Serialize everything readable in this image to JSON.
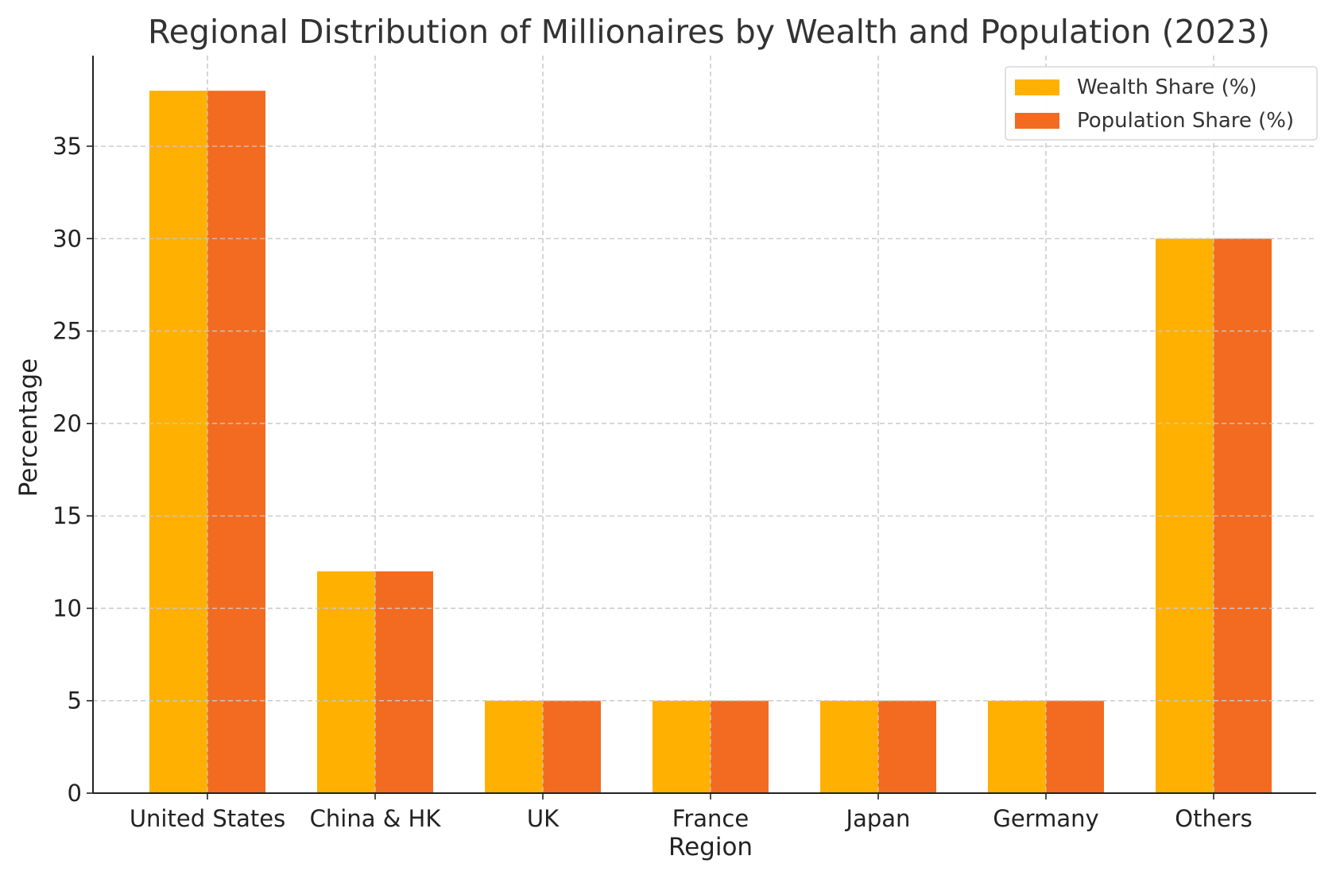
{
  "chart_data": {
    "type": "bar",
    "title": "Regional Distribution of Millionaires by Wealth and Population (2023)",
    "xlabel": "Region",
    "ylabel": "Percentage",
    "categories": [
      "United States",
      "China & HK",
      "UK",
      "France",
      "Japan",
      "Germany",
      "Others"
    ],
    "series": [
      {
        "name": "Wealth Share (%)",
        "values": [
          38,
          12,
          5,
          5,
          5,
          5,
          30
        ],
        "color": "#FFB000"
      },
      {
        "name": "Population Share (%)",
        "values": [
          38,
          12,
          5,
          5,
          5,
          5,
          30
        ],
        "color": "#F26B21"
      }
    ],
    "ylim": [
      0,
      39.9
    ],
    "yticks": [
      0,
      5,
      10,
      15,
      20,
      25,
      30,
      35
    ],
    "grid": true,
    "legend_position": "top-right"
  }
}
